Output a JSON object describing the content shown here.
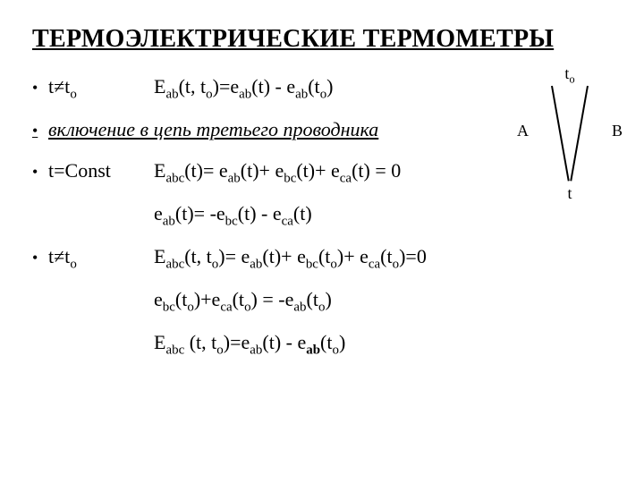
{
  "title": "ТЕРМОЭЛЕКТРИЧЕСКИЕ ТЕРМОМЕТРЫ",
  "items": [
    {
      "cond": "t≠t",
      "cond_sub": "o",
      "eq_html": "E<sub>ab</sub>(t, t<sub>o</sub>)=e<sub>ab</sub>(t) - e<sub>ab</sub>(t<sub>o</sub>)"
    }
  ],
  "subheading": "включение в цепь третьего проводника",
  "items2": [
    {
      "cond": "t=Const",
      "eq_html": "E<sub>abc</sub>(t)= e<sub>ab</sub>(t)+ e<sub>bc</sub>(t)+ e<sub>ca</sub>(t) = 0"
    }
  ],
  "indent1": "e<sub>ab</sub>(t)= -e<sub>bc</sub>(t) - e<sub>ca</sub>(t)",
  "items3": [
    {
      "cond": "t≠t",
      "cond_sub": "o",
      "eq_html": "E<sub>abc</sub>(t, t<sub>o</sub>)= e<sub>ab</sub>(t)+ e<sub>bc</sub>(t<sub>o</sub>)+ e<sub>ca</sub>(t<sub>o</sub>)=0"
    }
  ],
  "indent2": "e<sub>bc</sub>(t<sub>o</sub>)+e<sub>ca</sub>(t<sub>o</sub>) = -e<sub>ab</sub>(t<sub>o</sub>)",
  "indent3": "E<sub>abc</sub> (t, t<sub>o</sub>)=e<sub>ab</sub>(t) - e<sub><span class=\"bold\">ab</span></sub>(t<sub>o</sub>)",
  "diagram": {
    "top_label_html": "t<sub>o</sub>",
    "left_label": "A",
    "right_label": "B",
    "bottom_label": "t",
    "line_color": "#000000",
    "line_width": 2,
    "line_height": 108,
    "angle_deg": 10
  },
  "typography": {
    "title_fontsize": 28,
    "body_fontsize": 22,
    "diagram_label_fontsize": 18,
    "font_family": "Times New Roman",
    "text_color": "#000000",
    "background_color": "#ffffff"
  }
}
